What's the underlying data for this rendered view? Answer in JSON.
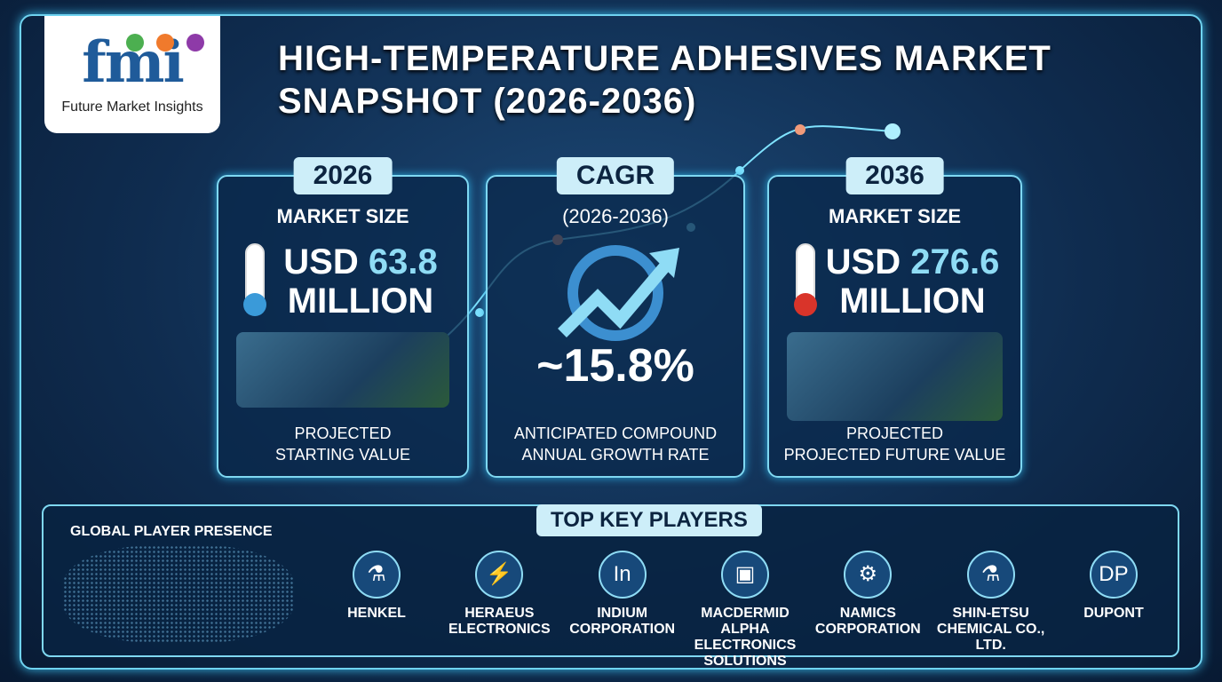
{
  "logo": {
    "mark": "fmi",
    "name": "Future Market Insights",
    "dot_colors": [
      "#4caf50",
      "#f07a2c",
      "#8e3aa8"
    ]
  },
  "title": {
    "line1": "HIGH-TEMPERATURE ADHESIVES MARKET",
    "line2": "SNAPSHOT (2026-2036)"
  },
  "cards": [
    {
      "badge": "2026",
      "subtitle": "MARKET SIZE",
      "currency": "USD",
      "value": "63.8",
      "unit": "MILLION",
      "desc1": "PROJECTED",
      "desc2": "STARTING VALUE",
      "icon": "thermometer-low-icon"
    },
    {
      "badge": "CAGR",
      "subtitle": "(2026-2036)",
      "value": "~15.8%",
      "desc1": "ANTICIPATED COMPOUND",
      "desc2": "ANNUAL GROWTH RATE",
      "icon": "growth-arrow-icon"
    },
    {
      "badge": "2036",
      "subtitle": "MARKET SIZE",
      "currency": "USD",
      "value": "276.6",
      "unit": "MILLION",
      "desc1": "PROJECTED",
      "desc2": "PROJECTED FUTURE VALUE",
      "icon": "thermometer-high-icon"
    }
  ],
  "bottom": {
    "global": "GLOBAL PLAYER PRESENCE",
    "heading": "TOP KEY PLAYERS",
    "players": [
      {
        "name": "HENKEL",
        "icon": "flask-icon",
        "glyph": "⚗"
      },
      {
        "name": "HERAEUS ELECTRONICS",
        "icon": "battery-icon",
        "glyph": "⚡"
      },
      {
        "name": "INDIUM CORPORATION",
        "icon": "indium-logo-icon",
        "glyph": "In"
      },
      {
        "name": "MACDERMID ALPHA ELECTRONICS SOLUTIONS",
        "icon": "chip-icon",
        "glyph": "▣"
      },
      {
        "name": "NAMICS CORPORATION",
        "icon": "gear-icon",
        "glyph": "⚙"
      },
      {
        "name": "SHIN-ETSU CHEMICAL CO., LTD.",
        "icon": "chemistry-icon",
        "glyph": "⚗"
      },
      {
        "name": "DUPONT",
        "icon": "dupont-logo-icon",
        "glyph": "DP"
      }
    ]
  },
  "colors": {
    "accent": "#8fdcf5",
    "badge": "#cdeef9",
    "background": "#0f2c4f"
  }
}
